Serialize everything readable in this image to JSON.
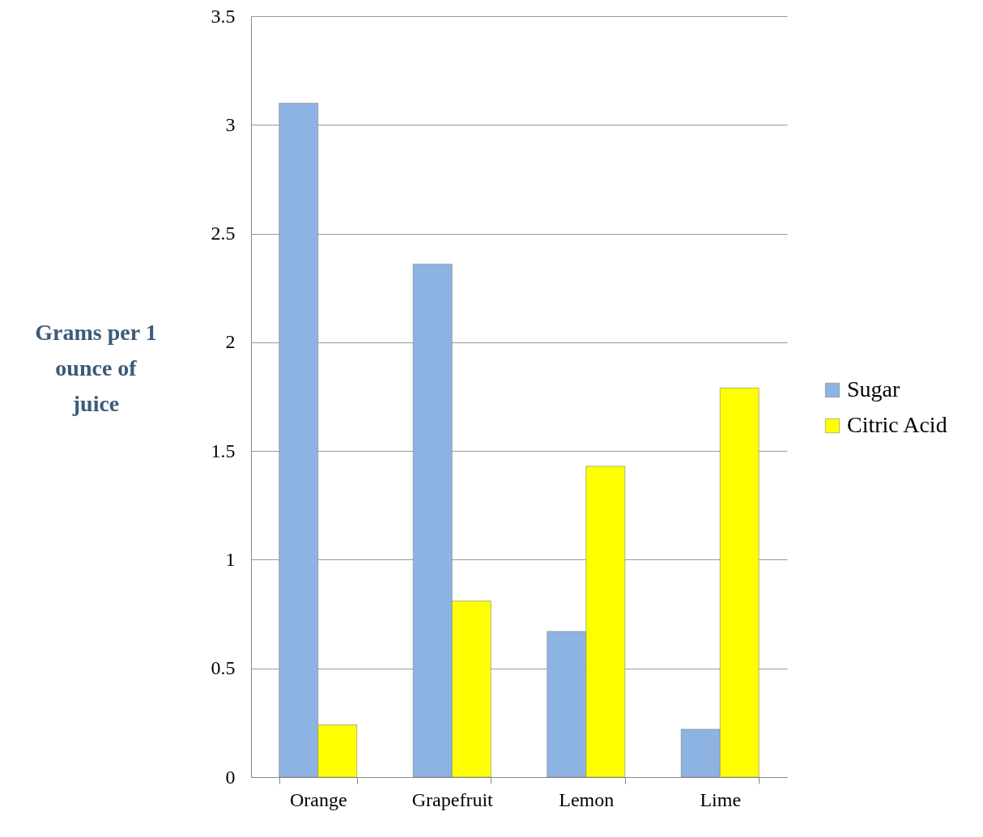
{
  "chart_data": {
    "type": "bar",
    "ylabel": "Grams per 1 ounce of juice",
    "categories": [
      "Orange",
      "Grapefruit",
      "Lemon",
      "Lime"
    ],
    "series": [
      {
        "name": "Sugar",
        "color": "#8db3e2",
        "values": [
          3.1,
          2.36,
          0.67,
          0.22
        ]
      },
      {
        "name": "Citric Acid",
        "color": "#ffff00",
        "values": [
          0.24,
          0.81,
          1.43,
          1.79
        ]
      }
    ],
    "ylim": [
      0,
      3.5
    ],
    "yticks": [
      0,
      0.5,
      1,
      1.5,
      2,
      2.5,
      3,
      3.5
    ],
    "grid": "y",
    "legend": "right"
  }
}
